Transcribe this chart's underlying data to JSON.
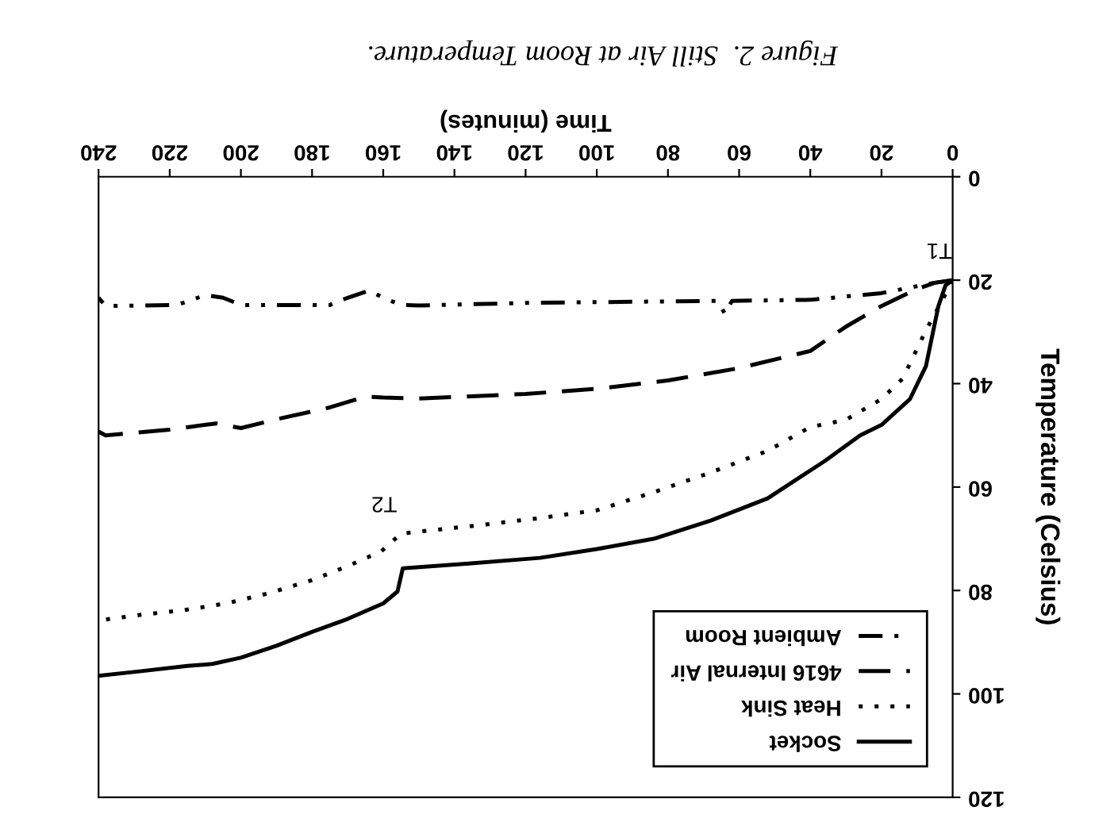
{
  "chart_data": {
    "type": "line",
    "title": "Figure 2.  Still Air at Room Temperature.",
    "xlabel": "Time (minutes)",
    "ylabel": "Temperature (Celsius)",
    "xlim": [
      240,
      0
    ],
    "ylim": [
      120,
      0
    ],
    "xticks": [
      0,
      20,
      40,
      60,
      80,
      100,
      120,
      140,
      160,
      180,
      200,
      220,
      240
    ],
    "yticks": [
      0,
      20,
      40,
      60,
      80,
      100,
      120
    ],
    "grid": false,
    "legend": "bottom right",
    "marker": "none",
    "annotations": [
      {
        "text": "T1",
        "x": 0,
        "y": 20
      },
      {
        "text": "T2",
        "x": 156,
        "y": 69
      }
    ],
    "series": [
      {
        "name": "Socket",
        "color": "#000000",
        "line_style": "solid",
        "x": [
          0,
          2,
          4,
          7.5,
          12,
          20,
          26,
          36,
          52,
          68,
          84,
          100,
          116,
          136,
          154.5,
          156,
          160,
          170,
          180,
          190,
          200,
          208,
          215,
          228,
          240
        ],
        "values": [
          20,
          21,
          25,
          36.6,
          43,
          48,
          50,
          55,
          62.2,
          66.5,
          70,
          72,
          73.7,
          74.8,
          75.7,
          80.2,
          82.5,
          85.5,
          88,
          90.7,
          93,
          94.2,
          94.6,
          95.6,
          96.5
        ]
      },
      {
        "name": "Heat Sink",
        "color": "#000000",
        "line_style": "dotted",
        "x": [
          0,
          3,
          7.5,
          14,
          20,
          30,
          40,
          52,
          68,
          84,
          100,
          116,
          132,
          155,
          160.5,
          170,
          180,
          192,
          204,
          216,
          228,
          240
        ],
        "values": [
          20,
          24,
          29.7,
          39,
          43,
          47,
          48.4,
          53,
          57.2,
          61,
          64.5,
          66,
          67.3,
          69,
          72.4,
          75.3,
          78,
          80.5,
          82.5,
          83.8,
          84.7,
          85.8
        ]
      },
      {
        "name": "4616 Internal Air",
        "color": "#000000",
        "line_style": "dashed",
        "x": [
          0,
          5,
          10,
          20,
          30,
          40,
          60,
          80,
          100,
          120,
          150,
          160,
          165,
          175,
          190,
          200,
          207,
          220,
          238,
          240
        ],
        "values": [
          20,
          20.5,
          21.7,
          25,
          29,
          33.7,
          37,
          39.4,
          41,
          42,
          42.9,
          42.7,
          42.5,
          44.6,
          46.9,
          48.6,
          47.7,
          48.9,
          50,
          49.3
        ]
      },
      {
        "name": "Ambient Room",
        "color": "#000000",
        "line_style": "dashdot",
        "x": [
          0,
          5,
          20,
          40,
          62,
          64,
          66,
          80,
          120,
          150,
          155,
          160,
          164,
          170,
          175,
          200,
          205,
          210,
          218,
          238,
          240
        ],
        "values": [
          20,
          20.5,
          22.5,
          23.8,
          24,
          26.5,
          24,
          24.1,
          24.4,
          24.9,
          24.8,
          23.4,
          22,
          23.4,
          24.8,
          24.8,
          23.4,
          22.9,
          24.8,
          25,
          23.4
        ]
      }
    ]
  }
}
